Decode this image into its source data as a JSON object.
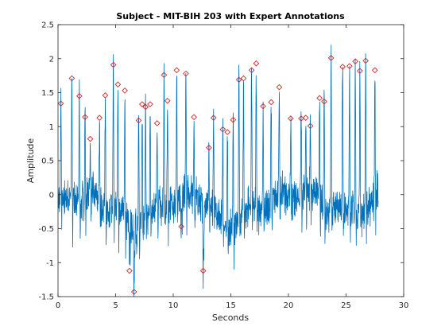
{
  "chart_data": {
    "type": "line",
    "title": "Subject - MIT-BIH 203 with Expert Annotations",
    "xlabel": "Seconds",
    "ylabel": "Amplitude",
    "xlim": [
      0,
      30
    ],
    "ylim": [
      -1.5,
      2.5
    ],
    "xticks": [
      0,
      5,
      10,
      15,
      20,
      25,
      30
    ],
    "yticks": [
      -1.5,
      -1,
      -0.5,
      0,
      0.5,
      1,
      1.5,
      2,
      2.5
    ],
    "xtick_labels": [
      "0",
      "5",
      "10",
      "15",
      "20",
      "25",
      "30"
    ],
    "ytick_labels": [
      "-1.5",
      "-1",
      "-0.5",
      "0",
      "0.5",
      "1",
      "1.5",
      "2",
      "2.5"
    ],
    "grid": false,
    "line_color": "#0072BD",
    "annotation_color": "#D62728",
    "signal_end_seconds": 27.8,
    "annotations": [
      {
        "x": 0.25,
        "y": 1.34
      },
      {
        "x": 1.2,
        "y": 1.71
      },
      {
        "x": 1.85,
        "y": 1.45
      },
      {
        "x": 2.35,
        "y": 1.14
      },
      {
        "x": 2.8,
        "y": 0.82
      },
      {
        "x": 3.6,
        "y": 1.13
      },
      {
        "x": 4.1,
        "y": 1.46
      },
      {
        "x": 4.8,
        "y": 1.91
      },
      {
        "x": 5.2,
        "y": 1.62
      },
      {
        "x": 5.8,
        "y": 1.53
      },
      {
        "x": 6.2,
        "y": -1.12
      },
      {
        "x": 6.6,
        "y": -1.43
      },
      {
        "x": 7.0,
        "y": 1.09
      },
      {
        "x": 7.3,
        "y": 1.33
      },
      {
        "x": 7.6,
        "y": 1.29
      },
      {
        "x": 8.0,
        "y": 1.33
      },
      {
        "x": 8.6,
        "y": 1.05
      },
      {
        "x": 9.2,
        "y": 1.76
      },
      {
        "x": 9.5,
        "y": 1.38
      },
      {
        "x": 10.3,
        "y": 1.83
      },
      {
        "x": 10.7,
        "y": -0.47
      },
      {
        "x": 11.1,
        "y": 1.78
      },
      {
        "x": 11.8,
        "y": 1.14
      },
      {
        "x": 12.6,
        "y": -1.12
      },
      {
        "x": 13.1,
        "y": 0.69
      },
      {
        "x": 13.5,
        "y": 1.13
      },
      {
        "x": 14.3,
        "y": 0.96
      },
      {
        "x": 14.7,
        "y": 0.92
      },
      {
        "x": 15.2,
        "y": 1.1
      },
      {
        "x": 15.7,
        "y": 1.69
      },
      {
        "x": 16.1,
        "y": 1.71
      },
      {
        "x": 16.8,
        "y": 1.83
      },
      {
        "x": 17.2,
        "y": 1.93
      },
      {
        "x": 17.8,
        "y": 1.3
      },
      {
        "x": 18.5,
        "y": 1.36
      },
      {
        "x": 19.2,
        "y": 1.58
      },
      {
        "x": 20.2,
        "y": 1.12
      },
      {
        "x": 21.1,
        "y": 1.12
      },
      {
        "x": 21.5,
        "y": 1.13
      },
      {
        "x": 21.9,
        "y": 1.01
      },
      {
        "x": 22.7,
        "y": 1.42
      },
      {
        "x": 23.1,
        "y": 1.37
      },
      {
        "x": 23.7,
        "y": 2.01
      },
      {
        "x": 24.7,
        "y": 1.88
      },
      {
        "x": 25.3,
        "y": 1.89
      },
      {
        "x": 25.8,
        "y": 1.96
      },
      {
        "x": 26.2,
        "y": 1.82
      },
      {
        "x": 26.7,
        "y": 1.97
      },
      {
        "x": 27.5,
        "y": 1.83
      }
    ]
  }
}
